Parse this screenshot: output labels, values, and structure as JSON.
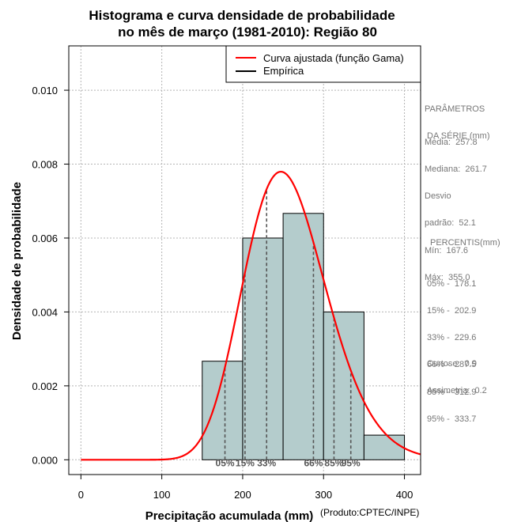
{
  "chart_data": {
    "type": "histogram",
    "title_lines": [
      "Histograma e curva densidade de probabilidade",
      "no mês de março (1981-2010): Região 80"
    ],
    "xlabel": "Precipitação acumulada (mm)",
    "ylabel": "Densidade de probabilidade",
    "credit": "(Produto:CPTEC/INPE)",
    "xlim": [
      -15,
      420
    ],
    "ylim": [
      -0.0004,
      0.0112
    ],
    "x_ticks": [
      0,
      100,
      200,
      300,
      400
    ],
    "x_tick_labels": [
      "0",
      "100",
      "200",
      "300",
      "400"
    ],
    "y_ticks": [
      0.0,
      0.002,
      0.004,
      0.006,
      0.008,
      0.01
    ],
    "y_tick_labels": [
      "0.000",
      "0.002",
      "0.004",
      "0.006",
      "0.008",
      "0.010"
    ],
    "grid": true,
    "bar_color": "#b4cccc",
    "curve_color": "#ff0000",
    "bins": [
      {
        "x0": 150,
        "x1": 200,
        "density": 0.002667
      },
      {
        "x0": 200,
        "x1": 250,
        "density": 0.006
      },
      {
        "x0": 250,
        "x1": 300,
        "density": 0.006667
      },
      {
        "x0": 300,
        "x1": 350,
        "density": 0.004
      },
      {
        "x0": 350,
        "x1": 400,
        "density": 0.000667
      }
    ],
    "gamma_fit": {
      "shape": 24.5,
      "scale": 10.52
    },
    "percentile_lines": [
      {
        "label": "05%",
        "x": 178.1
      },
      {
        "label": "15%",
        "x": 202.9
      },
      {
        "label": "33%",
        "x": 229.6
      },
      {
        "label": "66%",
        "x": 287.5
      },
      {
        "label": "85%",
        "x": 312.9
      },
      {
        "label": "95%",
        "x": 333.7
      }
    ],
    "legend": {
      "placement": "top-right",
      "entries": [
        {
          "label": "Curva ajustada (função Gama)",
          "color": "#ff0000"
        },
        {
          "label": "Empírica",
          "color": "#000000"
        }
      ]
    }
  },
  "side_panel": {
    "params_header": [
      "PARÂMETROS",
      " DA SÉRIE (mm)"
    ],
    "params": [
      "Média:  257.8",
      "Mediana:  261.7",
      "Desvio",
      "padrão:  52.1",
      "Mín:  167.6",
      "Máx:  355.0"
    ],
    "percentis_header": "PERCENTIS(mm)",
    "percentis": [
      "05% -  178.1",
      "15% -  202.9",
      "33% -  229.6",
      "66% -  287.5",
      "85% -  312.9",
      "95% -  333.7"
    ],
    "stats": [
      "Curtose:  0.9",
      "Assimetria:  0.2"
    ]
  }
}
